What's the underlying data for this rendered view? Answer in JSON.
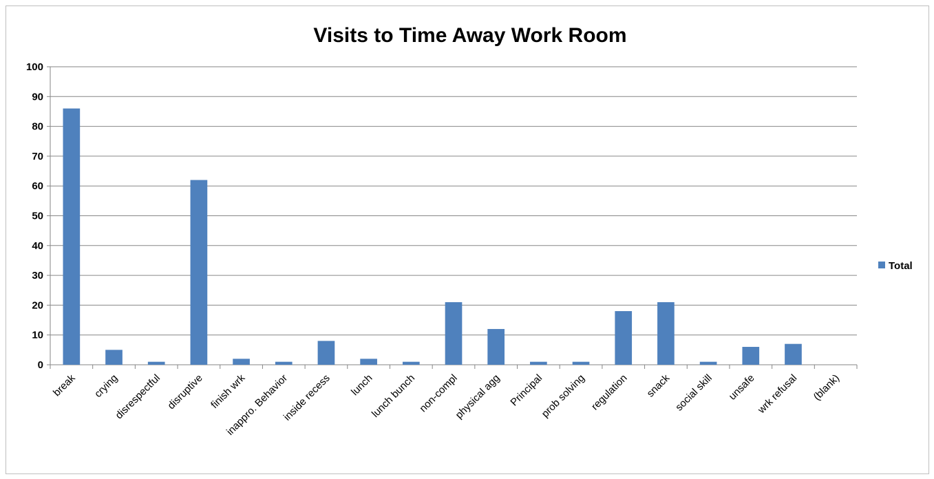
{
  "chart_data": {
    "type": "bar",
    "title": "Visits to Time Away Work Room",
    "xlabel": "",
    "ylabel": "",
    "ylim": [
      0,
      100
    ],
    "yticks": [
      0,
      10,
      20,
      30,
      40,
      50,
      60,
      70,
      80,
      90,
      100
    ],
    "grid": true,
    "legend_position": "right",
    "categories": [
      "break",
      "crying",
      "disrespectful",
      "disruptive",
      "finish wrk",
      "inappro. Behavior",
      "inside recess",
      "lunch",
      "lunch bunch",
      "non-compl",
      "physical agg",
      "Principal",
      "prob solving",
      "regulation",
      "snack",
      "social skill",
      "unsafe",
      "wrk refusal",
      "(blank)"
    ],
    "series": [
      {
        "name": "Total",
        "color": "#4f81bd",
        "values": [
          86,
          5,
          1,
          62,
          2,
          1,
          8,
          2,
          1,
          21,
          12,
          1,
          1,
          18,
          21,
          1,
          6,
          7,
          0
        ]
      }
    ]
  }
}
